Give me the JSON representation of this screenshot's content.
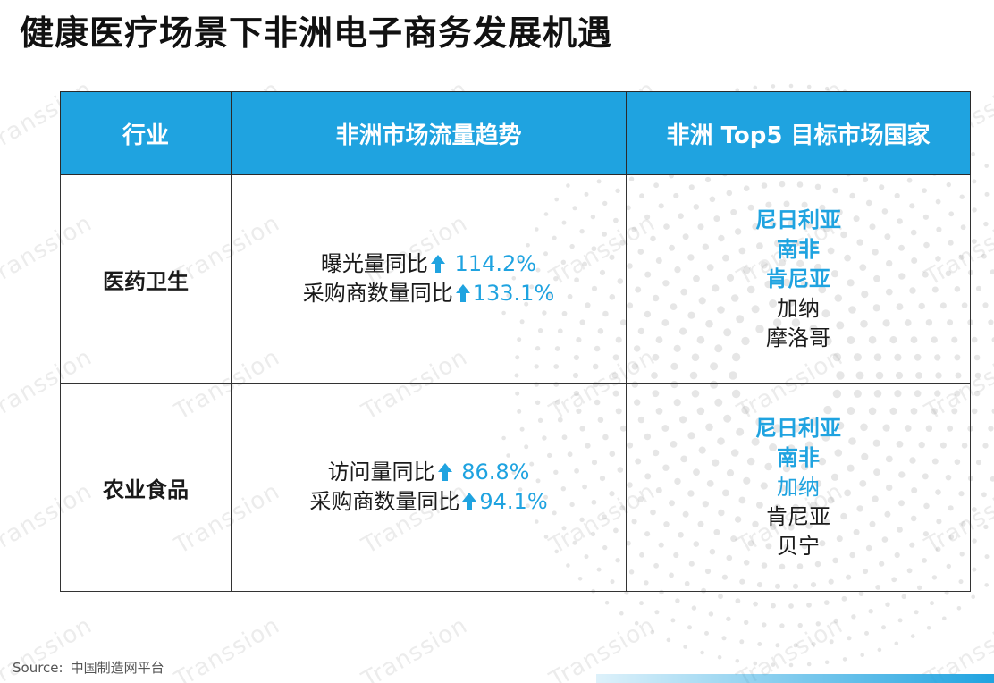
{
  "title": "健康医疗场景下非洲电子商务发展机遇",
  "table": {
    "headers": [
      "行业",
      "非洲市场流量趋势",
      "非洲 Top5 目标市场国家"
    ],
    "rows": [
      {
        "industry": "医药卫生",
        "trends": [
          {
            "label": "曝光量同比",
            "value": " 114.2%"
          },
          {
            "label": "采购商数量同比",
            "value": "133.1%"
          }
        ],
        "countries": [
          {
            "name": "尼日利亚",
            "highlight": true
          },
          {
            "name": "南非",
            "highlight": true
          },
          {
            "name": "肯尼亚",
            "highlight": true
          },
          {
            "name": "加纳",
            "highlight": false
          },
          {
            "name": "摩洛哥",
            "highlight": false
          }
        ]
      },
      {
        "industry": "农业食品",
        "trends": [
          {
            "label": "访问量同比",
            "value": " 86.8%"
          },
          {
            "label": "采购商数量同比",
            "value": "94.1%"
          }
        ],
        "countries": [
          {
            "name": "尼日利亚",
            "highlight": true
          },
          {
            "name": "南非",
            "highlight": true
          },
          {
            "name": "加纳",
            "highlight": true
          },
          {
            "name": "肯尼亚",
            "highlight": false
          },
          {
            "name": "贝宁",
            "highlight": false
          }
        ]
      }
    ]
  },
  "source": {
    "label": "Source:",
    "text": "中国制造网平台"
  },
  "watermark_text": "Transsion",
  "colors": {
    "accent": "#1fa3e0",
    "text": "#1a1a1a",
    "border": "#333333"
  },
  "icons": {
    "trend_arrow": "up-arrow-icon"
  }
}
